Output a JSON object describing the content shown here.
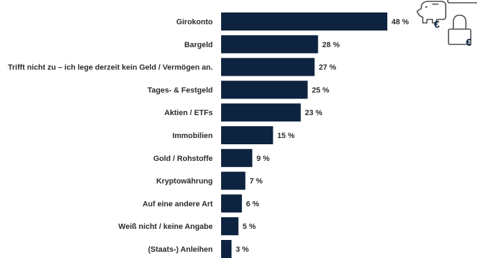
{
  "chart_data": {
    "type": "bar",
    "orientation": "horizontal",
    "categories": [
      "Girokonto",
      "Bargeld",
      "Trifft nicht zu – ich lege derzeit kein Geld / Vermögen an.",
      "Tages- & Festgeld",
      "Aktien / ETFs",
      "Immobilien",
      "Gold / Rohstoffe",
      "Kryptowährung",
      "Auf eine andere Art",
      "Weiß nicht / keine Angabe",
      "(Staats-) Anleihen"
    ],
    "values": [
      48,
      28,
      27,
      25,
      23,
      15,
      9,
      7,
      6,
      5,
      3
    ],
    "value_labels": [
      "48 %",
      "28 %",
      "27 %",
      "25 %",
      "23 %",
      "15 %",
      "9 %",
      "7 %",
      "6 %",
      "5 %",
      "3 %"
    ],
    "unit": "%",
    "xlim": [
      0,
      48
    ],
    "grid": false,
    "legend": "none",
    "bar_color": "#0d2340"
  },
  "decor": {
    "icons": [
      "piggy-bank-euro-icon",
      "padlock-euro-icon"
    ],
    "euro_symbol": "€",
    "icon_color": "#4a4a4a",
    "accent_color": "#0d2340"
  }
}
